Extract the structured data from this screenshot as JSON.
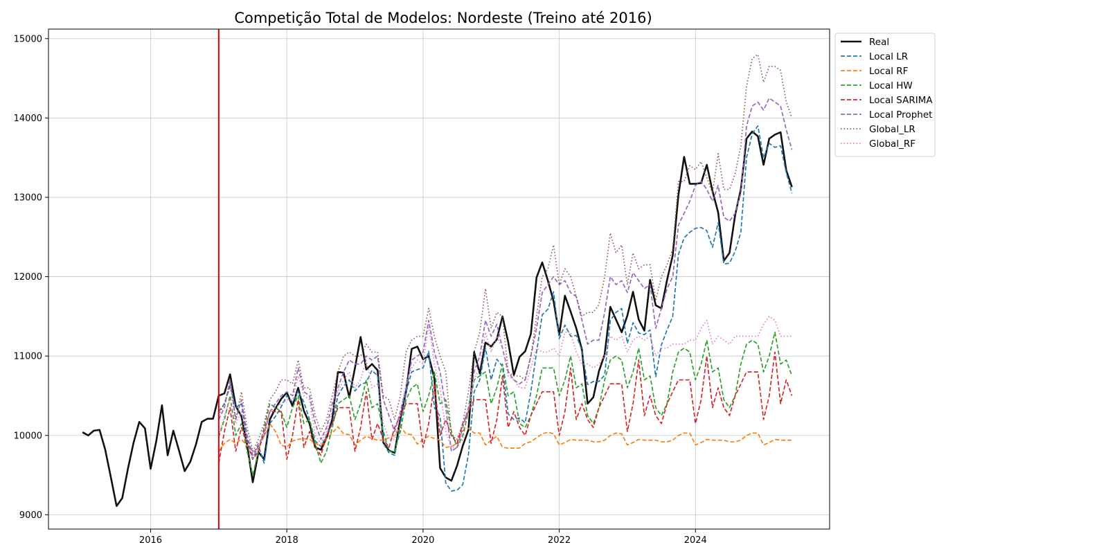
{
  "chart_data": {
    "type": "line",
    "title": "Competição Total de Modelos: Nordeste (Treino até 2016)",
    "xlabel": "",
    "ylabel": "",
    "xlim": [
      2014.5,
      2025.97
    ],
    "ylim": [
      8820,
      15120
    ],
    "x_ticks": [
      2016,
      2018,
      2020,
      2022,
      2024
    ],
    "y_ticks": [
      9000,
      10000,
      11000,
      12000,
      13000,
      14000,
      15000
    ],
    "grid": true,
    "legend_position": "outside top-right",
    "vline": {
      "x": 2017.0,
      "color": "#e00000"
    },
    "series": [
      {
        "name": "Real",
        "color": "#111111",
        "dash": "solid",
        "start": 2015.0,
        "values": [
          10040,
          10000,
          10060,
          10070,
          9820,
          9470,
          9110,
          9210,
          9580,
          9910,
          10170,
          10090,
          9580,
          9930,
          10380,
          9750,
          10060,
          9810,
          9550,
          9670,
          9890,
          10170,
          10210,
          10210,
          10500,
          10530,
          10770,
          10370,
          10240,
          9880,
          9410,
          9790,
          9700,
          10200,
          10340,
          10460,
          10540,
          10370,
          10600,
          10310,
          10150,
          9850,
          9820,
          9970,
          10200,
          10800,
          10790,
          10480,
          10850,
          11240,
          10830,
          10900,
          10820,
          9910,
          9810,
          9780,
          10210,
          10550,
          11090,
          11120,
          10960,
          11000,
          10720,
          9590,
          9470,
          9430,
          9620,
          9870,
          10070,
          11050,
          10780,
          11170,
          11120,
          11210,
          11500,
          11180,
          10760,
          10990,
          11060,
          11280,
          11990,
          12180,
          11950,
          11690,
          11270,
          11760,
          11560,
          11350,
          11080,
          10400,
          10480,
          10810,
          11020,
          11620,
          11460,
          11300,
          11510,
          11810,
          11460,
          11320,
          11960,
          11640,
          11600,
          11960,
          12270,
          13030,
          13510,
          13170,
          13170,
          13180,
          13410,
          13080,
          12810,
          12200,
          12300,
          12780,
          13100,
          13740,
          13830,
          13770,
          13410,
          13740,
          13790,
          13820,
          13340,
          13130
        ]
      },
      {
        "name": "Local LR",
        "color": "#1f77b4",
        "dash": "dashed",
        "start": 2017.0,
        "values": [
          10300,
          10400,
          10620,
          10350,
          10400,
          9950,
          9700,
          9870,
          9650,
          10150,
          10240,
          10360,
          10500,
          10420,
          10560,
          10420,
          10200,
          9930,
          9860,
          10000,
          10150,
          10500,
          10620,
          10700,
          10560,
          10640,
          10670,
          10820,
          10750,
          9900,
          9780,
          9750,
          10150,
          10540,
          10800,
          10830,
          10850,
          11060,
          10350,
          10240,
          9400,
          9300,
          9310,
          9380,
          9760,
          10550,
          10700,
          11100,
          10700,
          10960,
          10870,
          10270,
          10200,
          10220,
          10160,
          10550,
          11050,
          11520,
          11590,
          11810,
          11220,
          11390,
          11250,
          11260,
          11070,
          10640,
          10680,
          10680,
          10760,
          11450,
          11550,
          11600,
          11160,
          11420,
          11290,
          11270,
          11330,
          10740,
          11140,
          11330,
          11500,
          12280,
          12490,
          12560,
          12610,
          12620,
          12580,
          12370,
          12680,
          12160,
          12170,
          12320,
          12560,
          13500,
          13800,
          13900,
          13500,
          13680,
          13630,
          13650,
          13310,
          13050
        ]
      },
      {
        "name": "Local RF",
        "color": "#ff7f0e",
        "dash": "dashed",
        "start": 2017.0,
        "values": [
          9800,
          9900,
          9950,
          9900,
          9950,
          9870,
          9800,
          9840,
          9990,
          10150,
          10050,
          9880,
          9850,
          9930,
          9950,
          9960,
          9950,
          9900,
          9870,
          9960,
          10030,
          10110,
          10020,
          10010,
          9880,
          9940,
          9990,
          9960,
          9940,
          9940,
          9970,
          10000,
          10110,
          10020,
          10010,
          9890,
          9950,
          9990,
          9960,
          9940,
          9850,
          9860,
          9900,
          10060,
          10090,
          10030,
          10030,
          9880,
          9940,
          9990,
          9850,
          9840,
          9840,
          9840,
          9900,
          9920,
          9970,
          10020,
          10040,
          10020,
          9880,
          9910,
          9950,
          9940,
          9940,
          9940,
          9920,
          9920,
          9940,
          10000,
          10030,
          10020,
          9880,
          9910,
          9950,
          9940,
          9940,
          9940,
          9920,
          9920,
          9940,
          10000,
          10030,
          10030,
          9880,
          9910,
          9950,
          9940,
          9940,
          9940,
          9920,
          9920,
          9940,
          10000,
          10030,
          10030,
          9880,
          9910,
          9950,
          9940,
          9940,
          9940
        ]
      },
      {
        "name": "Local HW",
        "color": "#2ca02c",
        "dash": "dashed",
        "start": 2017.0,
        "values": [
          9980,
          10200,
          10500,
          10000,
          10150,
          9800,
          9500,
          9800,
          10100,
          10400,
          10350,
          10300,
          10100,
          10350,
          10500,
          10150,
          10200,
          9900,
          9650,
          9800,
          10100,
          10400,
          10450,
          10500,
          10200,
          10400,
          10700,
          10350,
          10400,
          10050,
          9800,
          9800,
          10050,
          10450,
          10600,
          10650,
          10300,
          10500,
          10800,
          10400,
          10450,
          10050,
          9850,
          10000,
          10300,
          10700,
          10750,
          10800,
          10400,
          10600,
          10900,
          10500,
          10550,
          10150,
          10100,
          10250,
          10500,
          10850,
          10850,
          10850,
          10500,
          10700,
          11000,
          10600,
          10650,
          10250,
          10150,
          10350,
          10700,
          10950,
          11000,
          10950,
          10600,
          10800,
          11100,
          10700,
          10750,
          10350,
          10250,
          10400,
          10800,
          11050,
          11100,
          11050,
          10700,
          10900,
          11200,
          10800,
          10850,
          10450,
          10350,
          10500,
          10900,
          11150,
          11200,
          11150,
          10800,
          11000,
          11300,
          10900,
          10950,
          10750
        ]
      },
      {
        "name": "Local SARIMA",
        "color": "#d62728",
        "dash": "dashed",
        "start": 2017.0,
        "values": [
          9650,
          10050,
          10350,
          9800,
          10100,
          9900,
          9700,
          9800,
          10050,
          10300,
          10300,
          10300,
          9700,
          10000,
          10450,
          9850,
          10050,
          9850,
          9750,
          10000,
          10150,
          10350,
          10350,
          10350,
          9800,
          10100,
          10550,
          9950,
          10150,
          9950,
          9850,
          10100,
          10250,
          10400,
          10400,
          10400,
          9850,
          10150,
          10650,
          10000,
          10200,
          10000,
          9900,
          10150,
          10300,
          10450,
          10450,
          10450,
          9900,
          10200,
          10750,
          10100,
          10300,
          10100,
          10000,
          10250,
          10400,
          10550,
          10550,
          10550,
          10000,
          10300,
          10850,
          10200,
          10400,
          10200,
          10100,
          10350,
          10500,
          10650,
          10650,
          10650,
          10050,
          10400,
          10950,
          10250,
          10500,
          10250,
          10150,
          10400,
          10550,
          10700,
          10700,
          10700,
          10150,
          10450,
          11000,
          10350,
          10600,
          10350,
          10250,
          10500,
          10650,
          10800,
          10800,
          10800,
          10200,
          10500,
          11050,
          10400,
          10700,
          10500
        ]
      },
      {
        "name": "Local Prophet",
        "color": "#9467bd",
        "dash": "dashed",
        "start": 2017.0,
        "values": [
          10200,
          10350,
          10700,
          10200,
          10450,
          10000,
          9750,
          9900,
          10000,
          10300,
          10400,
          10500,
          10550,
          10500,
          10850,
          10550,
          10500,
          10150,
          9950,
          10100,
          10400,
          10600,
          10800,
          10950,
          10900,
          10900,
          11000,
          10950,
          11000,
          10450,
          10250,
          10050,
          10300,
          10600,
          10950,
          11000,
          11050,
          11450,
          11050,
          10800,
          10350,
          9800,
          9850,
          10100,
          10350,
          10800,
          11000,
          11450,
          11250,
          11400,
          11100,
          10800,
          10700,
          10650,
          10700,
          11000,
          11350,
          11800,
          11900,
          12000,
          11900,
          11950,
          11800,
          11750,
          11450,
          11150,
          11200,
          11200,
          11550,
          12000,
          11900,
          11950,
          11800,
          12050,
          11950,
          11850,
          11900,
          11350,
          11600,
          11850,
          12000,
          12650,
          12800,
          12950,
          13150,
          13200,
          13100,
          12950,
          13150,
          12750,
          12700,
          12800,
          13050,
          13900,
          14150,
          14200,
          14100,
          14250,
          14200,
          14150,
          13850,
          13600
        ]
      },
      {
        "name": "Global_LR",
        "color": "#8c564b",
        "dash": "dotted",
        "start": 2017.0,
        "values": [
          10250,
          10400,
          10650,
          10200,
          10550,
          10100,
          9800,
          9950,
          10150,
          10450,
          10550,
          10700,
          10700,
          10650,
          10950,
          10600,
          10600,
          10250,
          10050,
          10200,
          10500,
          10800,
          11000,
          11050,
          11000,
          11000,
          11150,
          11050,
          11050,
          10500,
          10450,
          10200,
          10500,
          11050,
          11200,
          11250,
          11250,
          11600,
          11250,
          11000,
          10800,
          10000,
          9950,
          10150,
          10550,
          11050,
          11300,
          11850,
          11350,
          11550,
          11500,
          10800,
          10750,
          10750,
          10700,
          11000,
          11500,
          12000,
          12100,
          12400,
          11900,
          12100,
          12000,
          11750,
          11500,
          11550,
          11550,
          11650,
          12000,
          12550,
          12300,
          12400,
          11900,
          12300,
          12100,
          12150,
          12150,
          11700,
          12000,
          12150,
          12350,
          13200,
          13200,
          13400,
          13350,
          13450,
          13250,
          13050,
          13550,
          13100,
          13100,
          13300,
          13650,
          14400,
          14750,
          14800,
          14450,
          14650,
          14650,
          14600,
          14200,
          14000
        ]
      },
      {
        "name": "Global_RF",
        "color": "#e377c2",
        "dash": "dotted",
        "start": 2017.0,
        "values": [
          10000,
          10250,
          10450,
          10150,
          10300,
          9900,
          9700,
          9850,
          10050,
          10300,
          10350,
          10400,
          10450,
          10450,
          10750,
          10500,
          10450,
          10000,
          9900,
          10050,
          10300,
          10550,
          10700,
          10800,
          10600,
          10700,
          10950,
          10600,
          10650,
          10150,
          9950,
          9950,
          10250,
          10650,
          10850,
          10950,
          10900,
          11400,
          10900,
          10600,
          10050,
          9850,
          9850,
          9950,
          10300,
          10700,
          10850,
          11300,
          11050,
          11250,
          11100,
          10750,
          10700,
          10600,
          10600,
          10850,
          11100,
          11050,
          11050,
          11100,
          11000,
          11300,
          11300,
          11050,
          10900,
          10900,
          10850,
          10900,
          11000,
          11250,
          11200,
          11250,
          11050,
          11200,
          11250,
          11200,
          11250,
          11000,
          11100,
          11100,
          11150,
          11150,
          11150,
          11200,
          11200,
          11350,
          11450,
          11150,
          11250,
          11200,
          11150,
          11250,
          11250,
          11250,
          11250,
          11250,
          11400,
          11500,
          11450,
          11250,
          11250,
          11250
        ]
      }
    ]
  }
}
